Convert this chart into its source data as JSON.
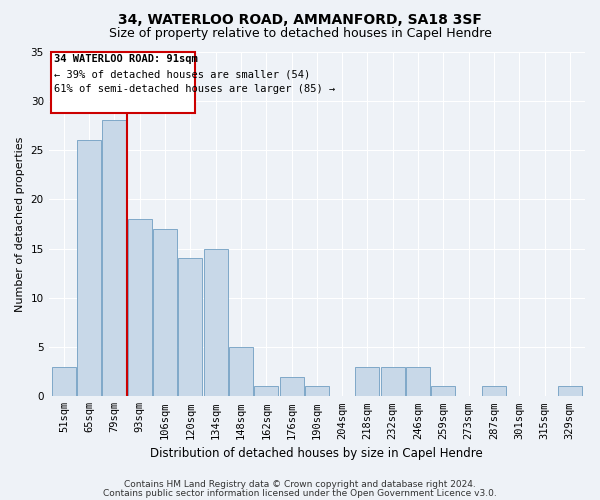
{
  "title": "34, WATERLOO ROAD, AMMANFORD, SA18 3SF",
  "subtitle": "Size of property relative to detached houses in Capel Hendre",
  "xlabel": "Distribution of detached houses by size in Capel Hendre",
  "ylabel": "Number of detached properties",
  "footer1": "Contains HM Land Registry data © Crown copyright and database right 2024.",
  "footer2": "Contains public sector information licensed under the Open Government Licence v3.0.",
  "categories": [
    "51sqm",
    "65sqm",
    "79sqm",
    "93sqm",
    "106sqm",
    "120sqm",
    "134sqm",
    "148sqm",
    "162sqm",
    "176sqm",
    "190sqm",
    "204sqm",
    "218sqm",
    "232sqm",
    "246sqm",
    "259sqm",
    "273sqm",
    "287sqm",
    "301sqm",
    "315sqm",
    "329sqm"
  ],
  "values": [
    3,
    26,
    28,
    18,
    17,
    14,
    15,
    5,
    1,
    2,
    1,
    0,
    3,
    3,
    3,
    1,
    0,
    1,
    0,
    0,
    1
  ],
  "bar_color": "#c8d8e8",
  "bar_edge_color": "#7fa8c8",
  "vline_x": 2.5,
  "vline_color": "#cc0000",
  "annotation_title": "34 WATERLOO ROAD: 91sqm",
  "annotation_line1": "← 39% of detached houses are smaller (54)",
  "annotation_line2": "61% of semi-detached houses are larger (85) →",
  "annotation_box_color": "#cc0000",
  "ylim": [
    0,
    35
  ],
  "yticks": [
    0,
    5,
    10,
    15,
    20,
    25,
    30,
    35
  ],
  "background_color": "#eef2f7",
  "grid_color": "#ffffff",
  "title_fontsize": 10,
  "subtitle_fontsize": 9,
  "xlabel_fontsize": 8.5,
  "ylabel_fontsize": 8,
  "tick_fontsize": 7.5,
  "footer_fontsize": 6.5
}
